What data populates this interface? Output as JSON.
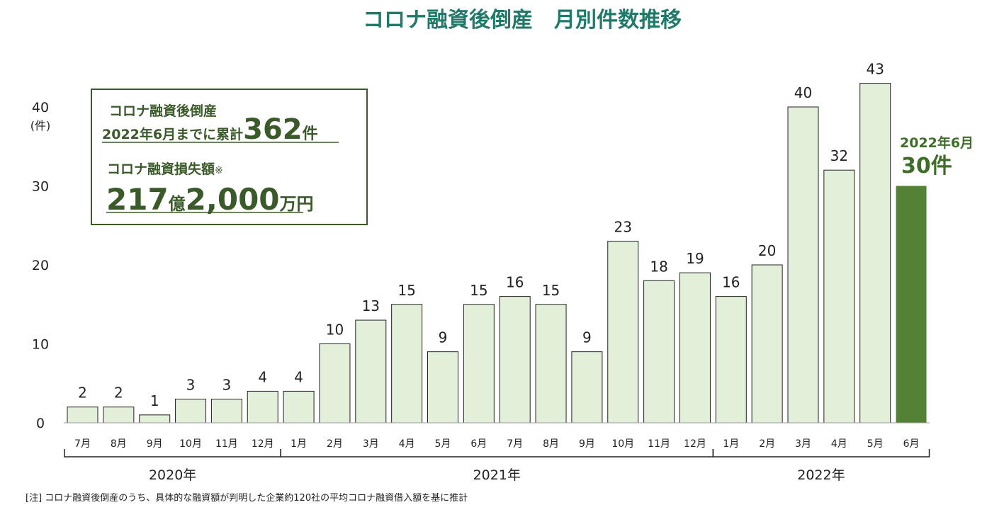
{
  "title": "コロナ融資後倒産　月別件数推移",
  "y_unit": "(件)",
  "info_box": {
    "line1": "コロナ融資後倒産",
    "line2_prefix": "2022年6月までに累計",
    "line2_number": "362",
    "line2_suffix": "件",
    "line3": "コロナ融資損失額",
    "line3_mark": "※",
    "line4_a": "217",
    "line4_b": "億",
    "line4_c": "2,000",
    "line4_d": "万円"
  },
  "highlight": {
    "line1": "2022年6月",
    "line2": "30件"
  },
  "note": "[注]  コロナ融資後倒産のうち、具体的な融資額が判明した企業約120社の平均コロナ融資借入額を基に推計",
  "colors": {
    "bar": "#e2efd9",
    "bar_highlight": "#538135",
    "bar_stroke": "#222222",
    "title": "#1f7a6a",
    "box_border": "#3a5a2a"
  },
  "chart_data": {
    "type": "bar",
    "title": "コロナ融資後倒産　月別件数推移",
    "ylabel": "(件)",
    "ylim": [
      0,
      40
    ],
    "yticks": [
      0,
      10,
      20,
      30,
      40
    ],
    "grid": false,
    "categories": [
      "7月",
      "8月",
      "9月",
      "10月",
      "11月",
      "12月",
      "1月",
      "2月",
      "3月",
      "4月",
      "5月",
      "6月",
      "7月",
      "8月",
      "9月",
      "10月",
      "11月",
      "12月",
      "1月",
      "2月",
      "3月",
      "4月",
      "5月",
      "6月"
    ],
    "values": [
      2,
      2,
      1,
      3,
      3,
      4,
      4,
      10,
      13,
      15,
      9,
      15,
      16,
      15,
      9,
      23,
      18,
      19,
      16,
      20,
      40,
      32,
      43,
      30
    ],
    "highlight_index": 23,
    "year_groups": [
      {
        "label": "2020年",
        "start": 0,
        "end": 5
      },
      {
        "label": "2021年",
        "start": 6,
        "end": 17
      },
      {
        "label": "2022年",
        "start": 18,
        "end": 23
      }
    ]
  }
}
